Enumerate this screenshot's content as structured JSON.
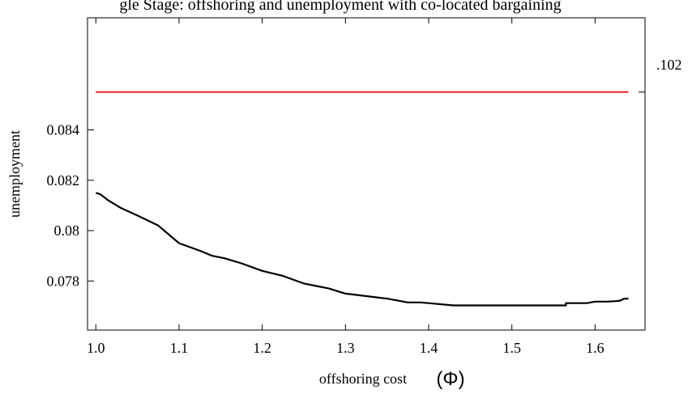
{
  "chart_data": {
    "type": "line",
    "title": "gle Stage: offshoring and unemployment with co-located bargaining",
    "xlabel": "offshoring cost",
    "xlabel_symbol": "(Φ)",
    "ylabel": "unemployment",
    "xlim": [
      0.99,
      1.66
    ],
    "ylim": [
      0.07605,
      0.08845
    ],
    "x_ticks": [
      1.0,
      1.1,
      1.2,
      1.3,
      1.4,
      1.5,
      1.6
    ],
    "x_tick_labels": [
      "1.0",
      "1.1",
      "1.2",
      "1.3",
      "1.4",
      "1.5",
      "1.6"
    ],
    "y_ticks": [
      0.078,
      0.08,
      0.082,
      0.084
    ],
    "y_tick_labels": [
      "0.078",
      "0.08",
      "0.082",
      "0.084"
    ],
    "right_label": ".102",
    "grid": false,
    "series": [
      {
        "color": "#000000",
        "x": [
          1.0,
          1.005,
          1.015,
          1.03,
          1.05,
          1.075,
          1.1,
          1.125,
          1.14,
          1.155,
          1.175,
          1.2,
          1.225,
          1.25,
          1.265,
          1.28,
          1.3,
          1.325,
          1.35,
          1.375,
          1.39,
          1.4,
          1.43,
          1.5,
          1.565,
          1.565,
          1.59,
          1.6,
          1.615,
          1.625,
          1.63,
          1.635,
          1.64
        ],
        "y": [
          0.0815,
          0.08145,
          0.0812,
          0.0809,
          0.0806,
          0.0802,
          0.0795,
          0.0792,
          0.079,
          0.0789,
          0.0787,
          0.0784,
          0.0782,
          0.0779,
          0.0778,
          0.0777,
          0.0775,
          0.0774,
          0.0773,
          0.07715,
          0.07715,
          0.07712,
          0.07703,
          0.07703,
          0.07703,
          0.07712,
          0.07712,
          0.07718,
          0.07718,
          0.0772,
          0.07722,
          0.0773,
          0.0773
        ]
      },
      {
        "color": "#e8242a",
        "x": [
          1.0,
          1.64
        ],
        "y": [
          0.0855,
          0.0855
        ]
      }
    ]
  }
}
